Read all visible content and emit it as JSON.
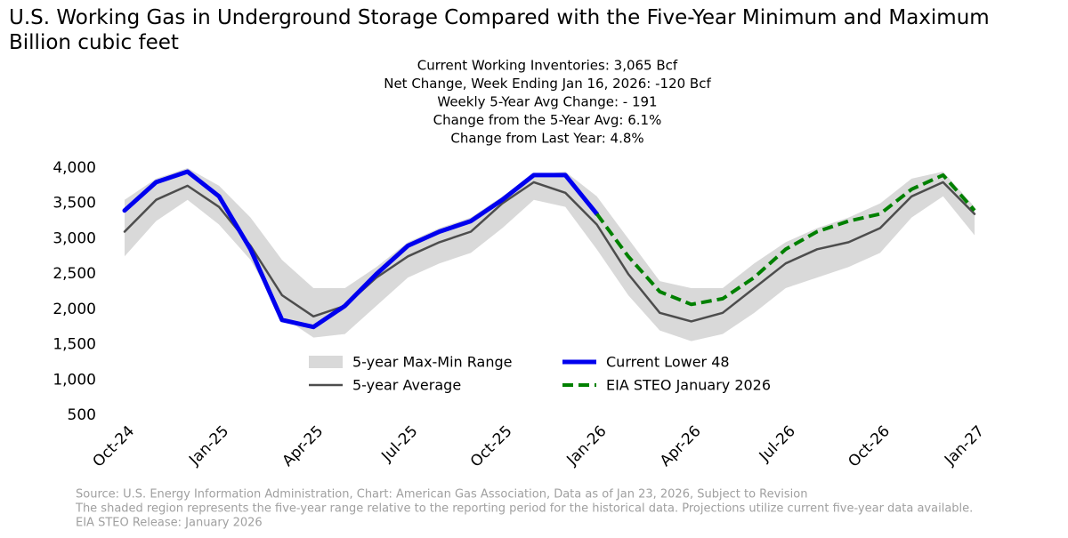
{
  "chart_data": {
    "type": "line",
    "title": "U.S. Working Gas in Underground Storage Compared with the Five-Year Minimum and Maximum",
    "subtitle": "Billion cubic feet",
    "annotations": [
      "Current Working Inventories: 3,065 Bcf",
      "Net Change, Week Ending Jan 16, 2026: -120 Bcf",
      "Weekly 5-Year Avg Change: - 191",
      "Change from the 5-Year Avg: 6.1%",
      "Change from Last Year: 4.8%"
    ],
    "source": [
      "Source: U.S. Energy Information Administration, Chart: American Gas Association, Data as of Jan 23, 2026, Subject to Revision",
      "The shaded region represents the five-year range relative to the reporting period for the historical data. Projections utilize current five-year data available.",
      "EIA STEO Release: January 2026"
    ],
    "categories": [
      "Oct-24",
      null,
      null,
      "Jan-25",
      null,
      null,
      "Apr-25",
      null,
      null,
      "Jul-25",
      null,
      null,
      "Oct-25",
      null,
      null,
      "Jan-26",
      null,
      null,
      "Apr-26",
      null,
      null,
      "Jul-26",
      null,
      null,
      "Oct-26",
      null,
      null,
      "Jan-27"
    ],
    "range": {
      "name": "5-year Max-Min Range",
      "color": "#d9d9d9",
      "max": [
        3550,
        3850,
        4000,
        3750,
        3300,
        2700,
        2300,
        2300,
        2600,
        2950,
        3150,
        3300,
        3600,
        3900,
        3950,
        3600,
        3000,
        2400,
        2300,
        2300,
        2650,
        2950,
        3150,
        3300,
        3500,
        3850,
        3950,
        3450
      ],
      "min": [
        2750,
        3250,
        3550,
        3200,
        2700,
        1900,
        1600,
        1650,
        2050,
        2450,
        2650,
        2800,
        3150,
        3550,
        3450,
        2850,
        2200,
        1700,
        1550,
        1650,
        1950,
        2300,
        2450,
        2600,
        2800,
        3300,
        3600,
        3050
      ]
    },
    "series": [
      {
        "name": "5-year Average",
        "color": "#4d4d4d",
        "dash": false,
        "width": 2.5,
        "values": [
          3100,
          3550,
          3750,
          3450,
          2900,
          2200,
          1900,
          2050,
          2450,
          2750,
          2950,
          3100,
          3500,
          3800,
          3650,
          3200,
          2500,
          1950,
          1830,
          1950,
          2300,
          2650,
          2850,
          2950,
          3150,
          3600,
          3800,
          3350
        ]
      },
      {
        "name": "Current Lower 48",
        "color": "#0000ee",
        "dash": false,
        "width": 5,
        "values": [
          3400,
          3800,
          3950,
          3600,
          2850,
          1850,
          1750,
          2050,
          2500,
          2900,
          3100,
          3250,
          3550,
          3900,
          3900,
          3350,
          null,
          null,
          null,
          null,
          null,
          null,
          null,
          null,
          null,
          null,
          null,
          null
        ]
      },
      {
        "name": "EIA STEO January 2026",
        "color": "#008000",
        "dash": true,
        "width": 4,
        "values": [
          null,
          null,
          null,
          null,
          null,
          null,
          null,
          null,
          null,
          null,
          null,
          null,
          null,
          null,
          null,
          3350,
          2750,
          2250,
          2070,
          2150,
          2450,
          2850,
          3100,
          3250,
          3350,
          3700,
          3900,
          3400
        ]
      }
    ],
    "ylim": [
      500,
      4000
    ],
    "yticks": [
      500,
      {
        "value": 1000,
        "label": "1,000"
      },
      {
        "value": 1500,
        "label": "1,500"
      },
      {
        "value": 2000,
        "label": "2,000"
      },
      {
        "value": 2500,
        "label": "2,500"
      },
      {
        "value": 3000,
        "label": "3,000"
      },
      {
        "value": 3500,
        "label": "3,500"
      },
      {
        "value": 4000,
        "label": "4,000"
      }
    ]
  }
}
